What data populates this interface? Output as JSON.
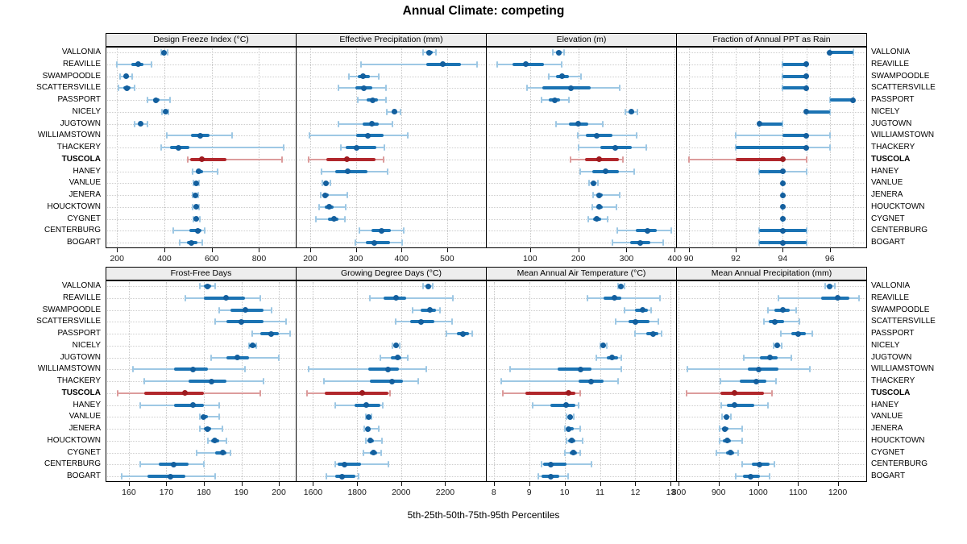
{
  "colors": {
    "series_blue": "#1b73b3",
    "series_blue_dot": "#135f9e",
    "series_blue_light": "#9ec8e4",
    "series_red": "#b1272c",
    "series_red_dot": "#9e1a1f",
    "series_red_light": "#dc9c9c",
    "grid_dotted": "#c6c6c6",
    "strip_bg": "#ededed",
    "panel_border": "#000000"
  },
  "chart_data": {
    "type": "dotplot-interval",
    "title": "Annual Climate: competing",
    "xlabel": "5th-25th-50th-75th-95th Percentiles",
    "percentiles": [
      5,
      25,
      50,
      75,
      95
    ],
    "legend_position": "none",
    "grid": "dotted",
    "highlight": "TUSCOLA",
    "categories": [
      "VALLONIA",
      "REAVILLE",
      "SWAMPOODLE",
      "SCATTERSVILLE",
      "PASSPORT",
      "NICELY",
      "JUGTOWN",
      "WILLIAMSTOWN",
      "THACKERY",
      "TUSCOLA",
      "HANEY",
      "VANLUE",
      "JENERA",
      "HOUCKTOWN",
      "CYGNET",
      "CENTERBURG",
      "BOGART"
    ],
    "panels": [
      {
        "title": "Design Freeze Index (°C)",
        "xlim": [
          155,
          955
        ],
        "ticks": [
          200,
          400,
          600,
          800
        ],
        "gridlines": [
          200,
          400,
          600,
          800
        ],
        "values": [
          [
            385,
            395,
            400,
            407,
            415
          ],
          [
            200,
            262,
            290,
            310,
            345
          ],
          [
            213,
            230,
            240,
            250,
            265
          ],
          [
            205,
            228,
            243,
            257,
            275
          ],
          [
            330,
            352,
            365,
            380,
            425
          ],
          [
            390,
            399,
            405,
            411,
            418
          ],
          [
            275,
            291,
            300,
            309,
            330
          ],
          [
            410,
            511,
            550,
            590,
            685
          ],
          [
            385,
            424,
            458,
            505,
            905
          ],
          [
            498,
            508,
            558,
            663,
            898
          ],
          [
            518,
            533,
            546,
            562,
            625
          ],
          [
            524,
            530,
            535,
            540,
            546
          ],
          [
            519,
            526,
            531,
            536,
            543
          ],
          [
            520,
            527,
            533,
            539,
            546
          ],
          [
            521,
            528,
            534,
            541,
            549
          ],
          [
            436,
            505,
            540,
            558,
            571
          ],
          [
            464,
            494,
            515,
            539,
            561
          ]
        ]
      },
      {
        "title": "Effective Precipitation (mm)",
        "xlim": [
          170,
          585
        ],
        "ticks": [
          200,
          300,
          400,
          500
        ],
        "gridlines": [
          200,
          300,
          400,
          500
        ],
        "values": [
          [
            447,
            455,
            461,
            468,
            476
          ],
          [
            311,
            454,
            491,
            530,
            566
          ],
          [
            284,
            304,
            316,
            330,
            351
          ],
          [
            262,
            299,
            318,
            336,
            366
          ],
          [
            304,
            324,
            336,
            348,
            366
          ],
          [
            368,
            378,
            385,
            391,
            398
          ],
          [
            261,
            314,
            335,
            351,
            381
          ],
          [
            199,
            301,
            326,
            360,
            414
          ],
          [
            268,
            277,
            302,
            345,
            362
          ],
          [
            197,
            236,
            280,
            343,
            361
          ],
          [
            224,
            254,
            282,
            326,
            369
          ],
          [
            226,
            230,
            234,
            239,
            245
          ],
          [
            223,
            228,
            233,
            241,
            281
          ],
          [
            219,
            231,
            242,
            252,
            278
          ],
          [
            213,
            239,
            252,
            261,
            276
          ],
          [
            307,
            334,
            356,
            376,
            404
          ],
          [
            299,
            321,
            341,
            375,
            401
          ]
        ]
      },
      {
        "title": "Elevation (m)",
        "xlim": [
          10,
          403
        ],
        "ticks": [
          100,
          200,
          300,
          400
        ],
        "gridlines": [
          100,
          200,
          300,
          400
        ],
        "values": [
          [
            147,
            154,
            160,
            165,
            171
          ],
          [
            31,
            64,
            91,
            129,
            166
          ],
          [
            139,
            154,
            166,
            181,
            206
          ],
          [
            94,
            126,
            184,
            226,
            286
          ],
          [
            124,
            139,
            151,
            162,
            181
          ],
          [
            297,
            305,
            310,
            316,
            322
          ],
          [
            154,
            181,
            199,
            221,
            251
          ],
          [
            199,
            216,
            239,
            271,
            321
          ],
          [
            201,
            246,
            276,
            311,
            341
          ],
          [
            184,
            214,
            243,
            284,
            293
          ],
          [
            204,
            229,
            256,
            284,
            316
          ],
          [
            223,
            228,
            232,
            236,
            241
          ],
          [
            231,
            238,
            244,
            251,
            286
          ],
          [
            229,
            237,
            243,
            251,
            279
          ],
          [
            221,
            231,
            239,
            248,
            261
          ],
          [
            281,
            319,
            344,
            363,
            393
          ],
          [
            271,
            307,
            329,
            349,
            376
          ]
        ]
      },
      {
        "title": "Fraction of Annual PPT as Rain",
        "xlim": [
          89.5,
          97.55
        ],
        "ticks": [
          90,
          92,
          94,
          96
        ],
        "gridlines": [
          90,
          91,
          92,
          93,
          94,
          95,
          96,
          97
        ],
        "values": [
          [
            96,
            96,
            96,
            97,
            97
          ],
          [
            94,
            94,
            95,
            95,
            95
          ],
          [
            94,
            94,
            95,
            95,
            95
          ],
          [
            94,
            94,
            95,
            95,
            95
          ],
          [
            96,
            96,
            97,
            97,
            97
          ],
          [
            95,
            95,
            95,
            96,
            96
          ],
          [
            93,
            93,
            93,
            94,
            94
          ],
          [
            92,
            94,
            95,
            95,
            96
          ],
          [
            92,
            92,
            95,
            95,
            96
          ],
          [
            90,
            92,
            94,
            94,
            95
          ],
          [
            93,
            93,
            94,
            94,
            95
          ],
          [
            94,
            94,
            94,
            94,
            94
          ],
          [
            94,
            94,
            94,
            94,
            94
          ],
          [
            94,
            94,
            94,
            94,
            94
          ],
          [
            94,
            94,
            94,
            94,
            94
          ],
          [
            93,
            93,
            94,
            95,
            95
          ],
          [
            93,
            93,
            94,
            95,
            95
          ]
        ]
      },
      {
        "title": "Frost-Free Days",
        "xlim": [
          154,
          204.5
        ],
        "ticks": [
          160,
          170,
          180,
          190,
          200
        ],
        "gridlines": [
          160,
          170,
          180,
          190,
          200
        ],
        "values": [
          [
            179,
            180,
            181,
            182,
            183
          ],
          [
            175,
            180,
            186,
            191,
            195
          ],
          [
            184,
            187,
            191,
            196,
            198
          ],
          [
            183,
            186,
            190,
            196,
            202
          ],
          [
            193,
            195,
            198,
            200,
            203
          ],
          [
            192,
            192,
            193,
            194,
            194
          ],
          [
            182,
            186,
            189,
            192,
            200
          ],
          [
            161,
            172,
            177,
            181,
            191
          ],
          [
            164,
            176,
            182,
            186,
            196
          ],
          [
            157,
            164,
            175,
            180,
            195
          ],
          [
            163,
            172,
            177,
            180,
            184
          ],
          [
            179,
            180,
            180,
            181,
            184
          ],
          [
            179,
            180,
            181,
            182,
            185
          ],
          [
            181,
            182,
            183,
            184,
            186
          ],
          [
            178,
            183,
            185,
            186,
            187
          ],
          [
            163,
            168,
            172,
            176,
            180
          ],
          [
            158,
            165,
            171,
            175,
            183
          ]
        ]
      },
      {
        "title": "Growing Degree Days (°C)",
        "xlim": [
          1525,
          2385
        ],
        "ticks": [
          1600,
          1800,
          2000,
          2200
        ],
        "gridlines": [
          1600,
          1800,
          2000,
          2200
        ],
        "values": [
          [
            2100,
            2112,
            2122,
            2131,
            2142
          ],
          [
            1858,
            1921,
            1976,
            2022,
            2234
          ],
          [
            2051,
            2089,
            2130,
            2159,
            2176
          ],
          [
            1976,
            2041,
            2089,
            2149,
            2233
          ],
          [
            2204,
            2254,
            2281,
            2309,
            2321
          ],
          [
            1959,
            1969,
            1976,
            1986,
            1994
          ],
          [
            1904,
            1954,
            1984,
            2001,
            2031
          ],
          [
            1581,
            1849,
            1939,
            1991,
            2114
          ],
          [
            1651,
            1859,
            1959,
            2009,
            2076
          ],
          [
            1574,
            1654,
            1824,
            1944,
            1951
          ],
          [
            1699,
            1789,
            1841,
            1904,
            1916
          ],
          [
            1839,
            1847,
            1854,
            1861,
            1866
          ],
          [
            1834,
            1841,
            1849,
            1859,
            1899
          ],
          [
            1841,
            1851,
            1861,
            1876,
            1914
          ],
          [
            1829,
            1859,
            1874,
            1891,
            1911
          ],
          [
            1699,
            1711,
            1741,
            1819,
            1944
          ],
          [
            1659,
            1701,
            1731,
            1794,
            1806
          ]
        ]
      },
      {
        "title": "Mean Annual Air Temperature (°C)",
        "xlim": [
          7.8,
          13.15
        ],
        "ticks": [
          8,
          9,
          10,
          11,
          12,
          13
        ],
        "gridlines": [
          8,
          9,
          10,
          11,
          12,
          13
        ],
        "values": [
          [
            11.5,
            11.55,
            11.6,
            11.65,
            11.7
          ],
          [
            10.65,
            11.1,
            11.4,
            11.6,
            12.7
          ],
          [
            11.7,
            12.0,
            12.2,
            12.35,
            12.45
          ],
          [
            11.45,
            11.8,
            12.0,
            12.4,
            12.65
          ],
          [
            12.0,
            12.3,
            12.5,
            12.65,
            12.75
          ],
          [
            11.0,
            11.05,
            11.1,
            11.15,
            11.2
          ],
          [
            10.9,
            11.2,
            11.35,
            11.5,
            11.6
          ],
          [
            8.45,
            9.8,
            10.45,
            10.75,
            11.6
          ],
          [
            8.2,
            10.4,
            10.75,
            11.1,
            11.5
          ],
          [
            8.25,
            8.9,
            10.1,
            10.3,
            10.45
          ],
          [
            9.1,
            9.6,
            10.05,
            10.3,
            10.4
          ],
          [
            10.05,
            10.1,
            10.15,
            10.2,
            10.25
          ],
          [
            10.0,
            10.05,
            10.1,
            10.25,
            10.45
          ],
          [
            10.05,
            10.1,
            10.2,
            10.3,
            10.5
          ],
          [
            10.0,
            10.15,
            10.25,
            10.35,
            10.45
          ],
          [
            9.35,
            9.4,
            9.6,
            10.05,
            10.75
          ],
          [
            9.25,
            9.35,
            9.6,
            9.85,
            10.1
          ]
        ]
      },
      {
        "title": "Mean Annual Precipitation (mm)",
        "xlim": [
          795,
          1272
        ],
        "ticks": [
          800,
          900,
          1000,
          1100,
          1200
        ],
        "gridlines": [
          800,
          900,
          1000,
          1100,
          1200
        ],
        "values": [
          [
            1168,
            1174,
            1180,
            1186,
            1192
          ],
          [
            1051,
            1159,
            1199,
            1229,
            1254
          ],
          [
            1024,
            1041,
            1061,
            1079,
            1096
          ],
          [
            1014,
            1026,
            1041,
            1064,
            1104
          ],
          [
            1056,
            1084,
            1101,
            1119,
            1136
          ],
          [
            1038,
            1044,
            1048,
            1053,
            1058
          ],
          [
            964,
            1004,
            1029,
            1049,
            1084
          ],
          [
            821,
            974,
            1001,
            1051,
            1129
          ],
          [
            904,
            954,
            994,
            1021,
            1044
          ],
          [
            819,
            904,
            941,
            1014,
            1034
          ],
          [
            906,
            921,
            941,
            989,
            1024
          ],
          [
            908,
            914,
            919,
            925,
            931
          ],
          [
            903,
            909,
            915,
            924,
            959
          ],
          [
            902,
            911,
            921,
            931,
            959
          ],
          [
            894,
            919,
            929,
            939,
            949
          ],
          [
            959,
            984,
            1004,
            1029,
            1041
          ],
          [
            944,
            961,
            981,
            1004,
            1029
          ]
        ]
      }
    ]
  }
}
